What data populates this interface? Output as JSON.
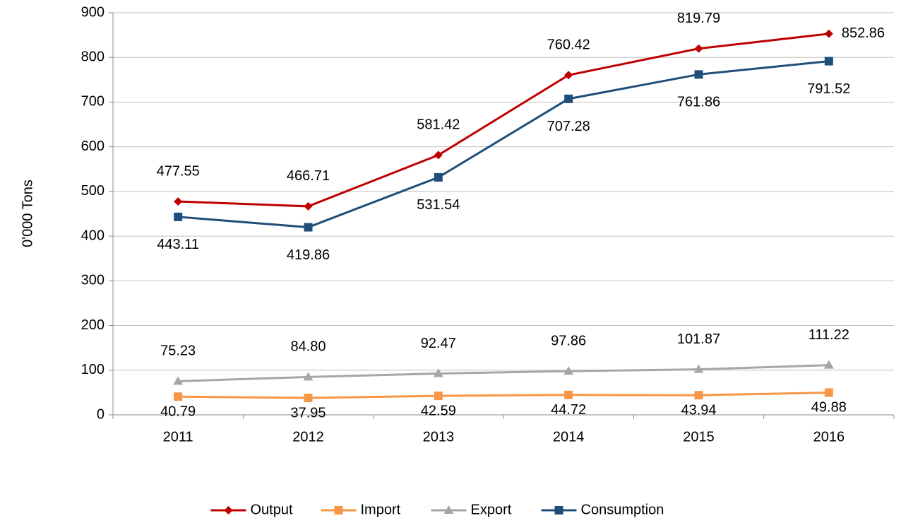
{
  "chart_data": {
    "type": "line",
    "y_label": "0'000 Tons",
    "categories": [
      "2011",
      "2012",
      "2013",
      "2014",
      "2015",
      "2016"
    ],
    "series": [
      {
        "name": "Output",
        "color": "#c00000",
        "marker": "diamond",
        "values": [
          477.55,
          466.71,
          581.42,
          760.42,
          819.79,
          852.86
        ]
      },
      {
        "name": "Import",
        "color": "#f79646",
        "marker": "square",
        "values": [
          40.79,
          37.95,
          42.59,
          44.72,
          43.94,
          49.88
        ]
      },
      {
        "name": "Export",
        "color": "#a6a6a6",
        "marker": "triangle",
        "values": [
          75.23,
          84.8,
          92.47,
          97.86,
          101.87,
          111.22
        ],
        "value_labels": [
          "75.23",
          "84.80",
          "92.47",
          "97.86",
          "101.87",
          "111.22"
        ]
      },
      {
        "name": "Consumption",
        "color": "#1f4e79",
        "marker": "square",
        "values": [
          443.11,
          419.86,
          531.54,
          707.28,
          761.86,
          791.52
        ]
      }
    ],
    "ylim": [
      0,
      900
    ],
    "yticks": [
      0,
      100,
      200,
      300,
      400,
      500,
      600,
      700,
      800,
      900
    ],
    "grid": true,
    "legend": "bottom"
  }
}
